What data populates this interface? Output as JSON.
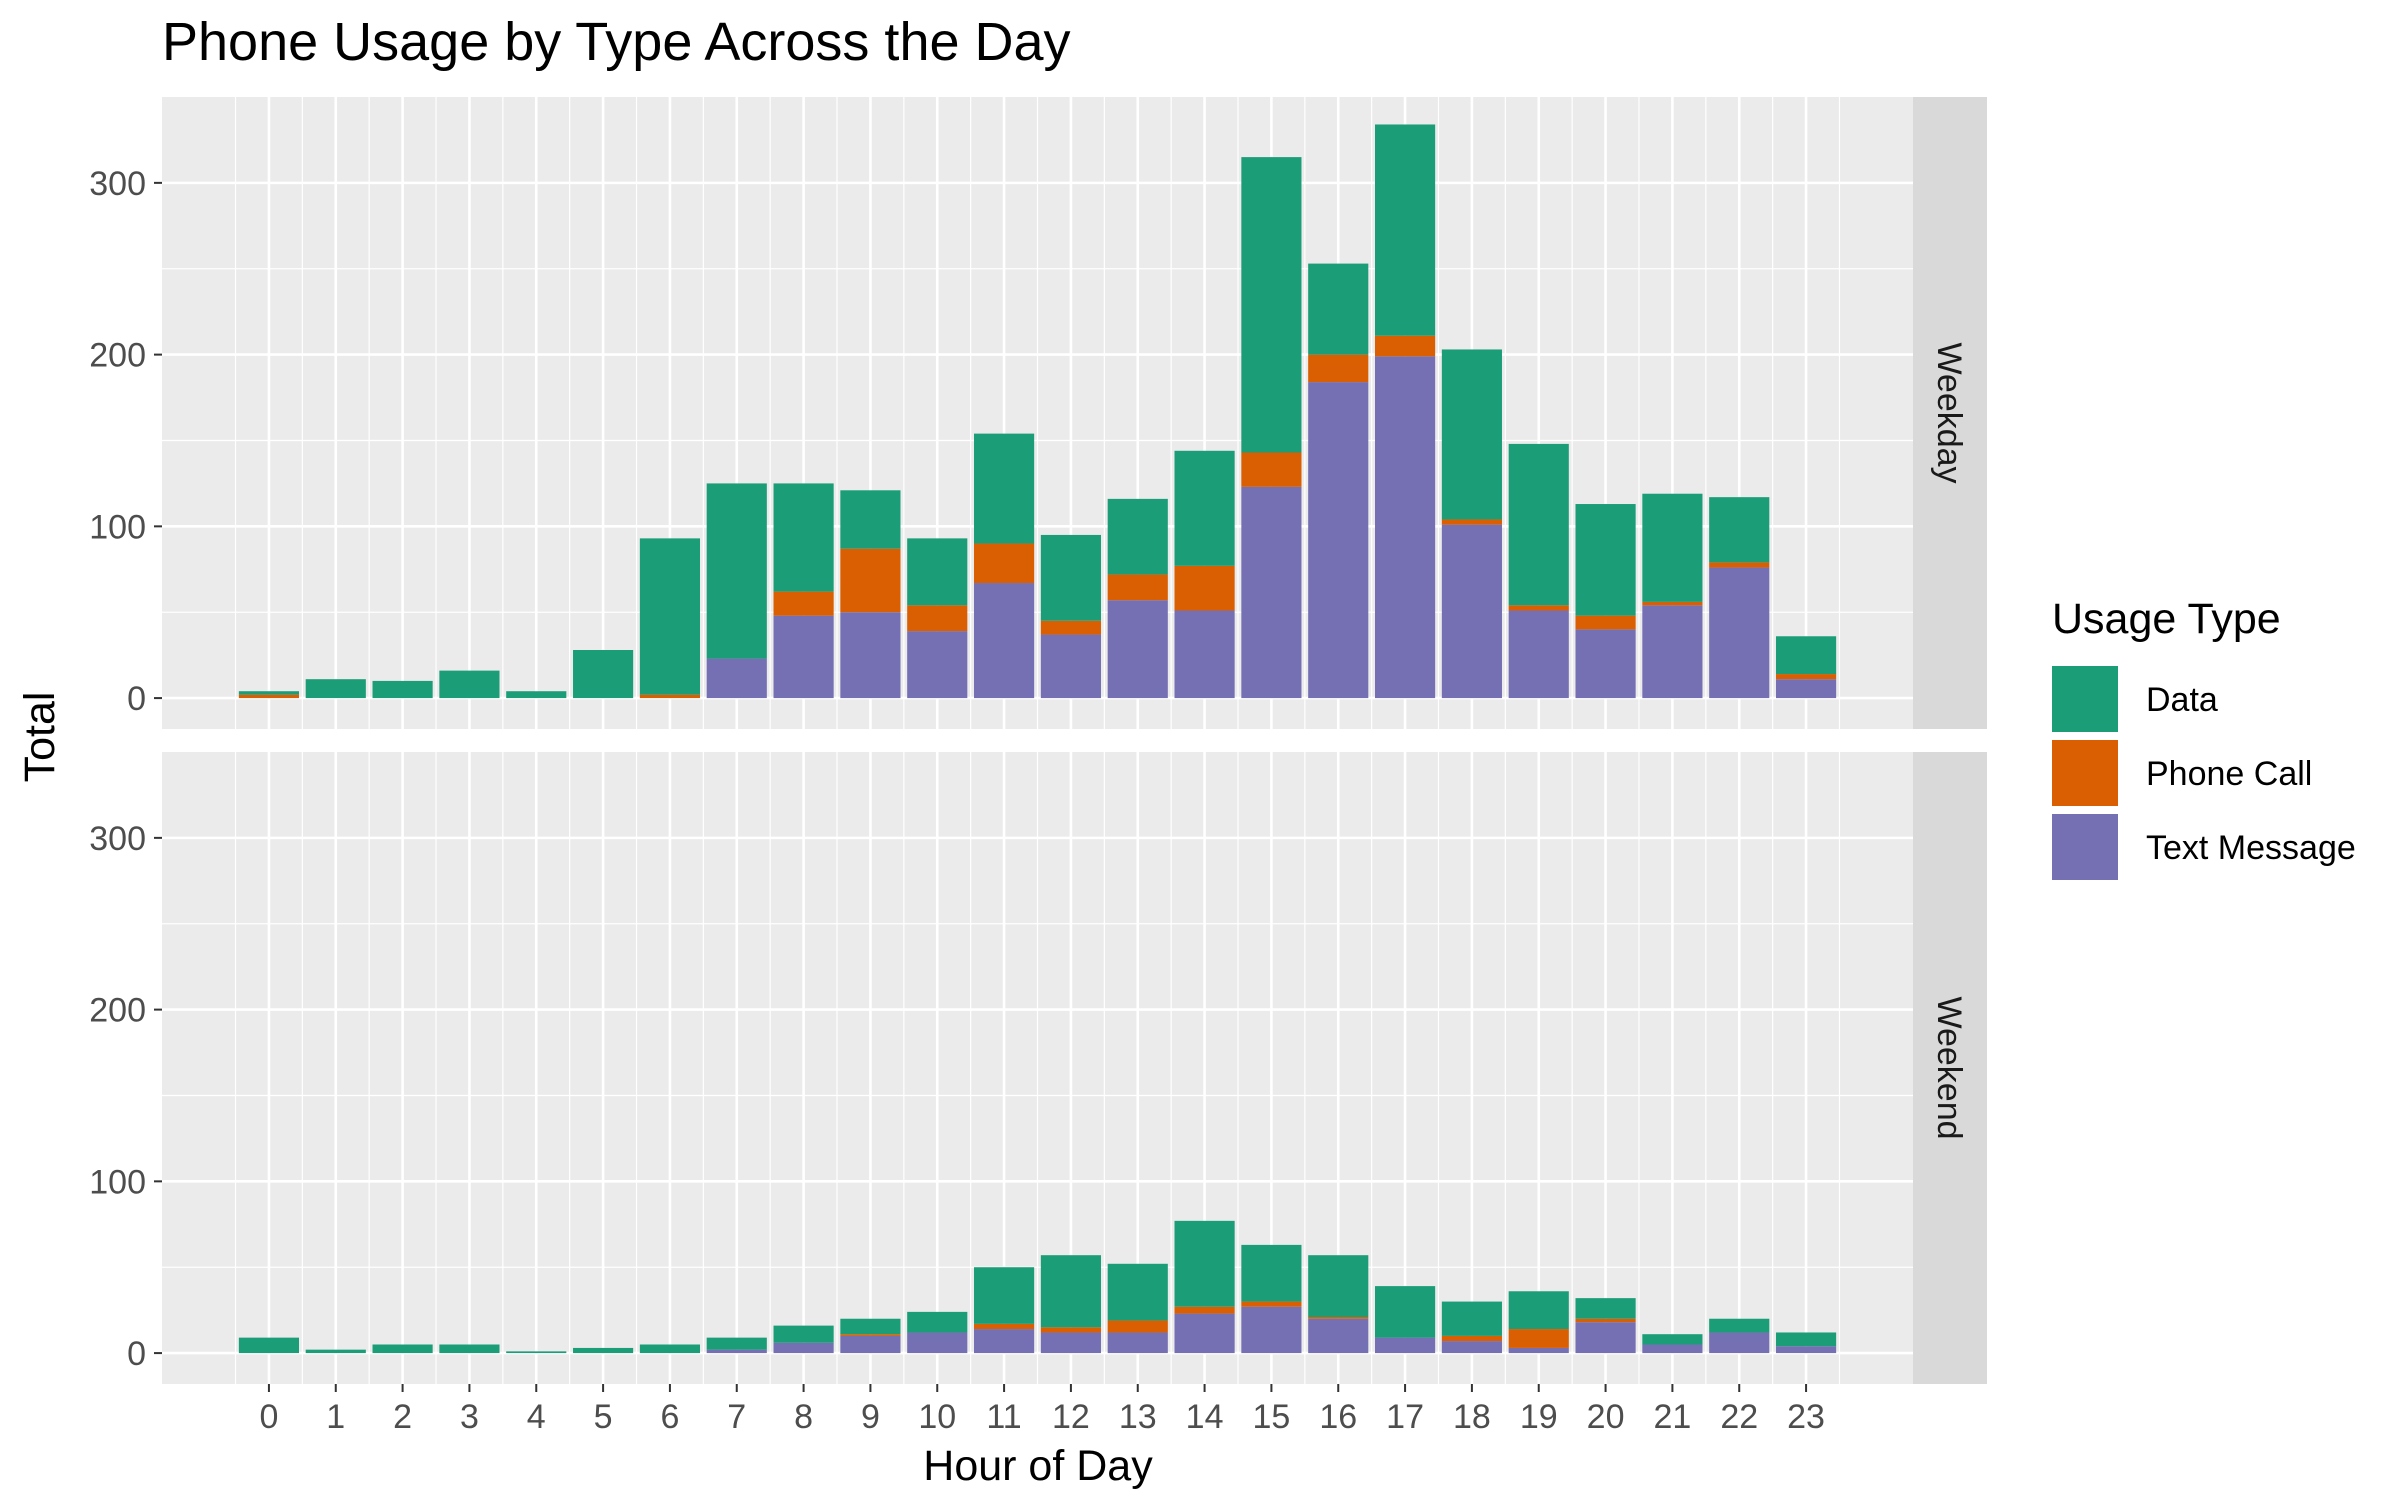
{
  "chart_data": {
    "type": "bar",
    "stacked": true,
    "title": "Phone Usage by Type Across the Day",
    "xlabel": "Hour of Day",
    "ylabel": "Total",
    "ylim": [
      -18,
      350
    ],
    "yticks": [
      0,
      100,
      200,
      300
    ],
    "grid": true,
    "legend_position": "right",
    "legend_title": "Usage Type",
    "categories": [
      "0",
      "1",
      "2",
      "3",
      "4",
      "5",
      "6",
      "7",
      "8",
      "9",
      "10",
      "11",
      "12",
      "13",
      "14",
      "15",
      "16",
      "17",
      "18",
      "19",
      "20",
      "21",
      "22",
      "23"
    ],
    "series_order": [
      "Text Message",
      "Phone Call",
      "Data"
    ],
    "legend": [
      {
        "name": "Data",
        "color": "#1b9e77"
      },
      {
        "name": "Phone Call",
        "color": "#d95f02"
      },
      {
        "name": "Text Message",
        "color": "#7570b3"
      }
    ],
    "panels": [
      {
        "facet": "Weekday",
        "series": [
          {
            "name": "Text Message",
            "values": [
              0,
              0,
              0,
              0,
              0,
              0,
              0,
              23,
              48,
              50,
              39,
              67,
              37,
              57,
              51,
              123,
              184,
              199,
              101,
              51,
              40,
              54,
              76,
              11
            ]
          },
          {
            "name": "Phone Call",
            "values": [
              2,
              0,
              0,
              0,
              0,
              0,
              2,
              0,
              14,
              37,
              15,
              23,
              8,
              15,
              26,
              20,
              16,
              12,
              3,
              3,
              8,
              2,
              3,
              3
            ]
          },
          {
            "name": "Data",
            "values": [
              2,
              11,
              10,
              16,
              4,
              28,
              91,
              102,
              63,
              34,
              39,
              64,
              50,
              44,
              67,
              172,
              53,
              123,
              99,
              94,
              65,
              63,
              38,
              22
            ]
          }
        ]
      },
      {
        "facet": "Weekend",
        "series": [
          {
            "name": "Text Message",
            "values": [
              0,
              0,
              0,
              0,
              0,
              0,
              0,
              2,
              6,
              10,
              12,
              14,
              12,
              12,
              23,
              27,
              20,
              9,
              7,
              3,
              18,
              5,
              12,
              4
            ]
          },
          {
            "name": "Phone Call",
            "values": [
              0,
              0,
              0,
              0,
              0,
              0,
              0,
              0,
              0,
              1,
              0,
              3,
              3,
              7,
              4,
              3,
              1,
              0,
              3,
              11,
              2,
              0,
              0,
              0
            ]
          },
          {
            "name": "Data",
            "values": [
              9,
              2,
              5,
              5,
              1,
              3,
              5,
              7,
              10,
              9,
              12,
              33,
              42,
              33,
              50,
              33,
              36,
              30,
              20,
              22,
              12,
              6,
              8,
              8
            ]
          }
        ]
      }
    ]
  }
}
